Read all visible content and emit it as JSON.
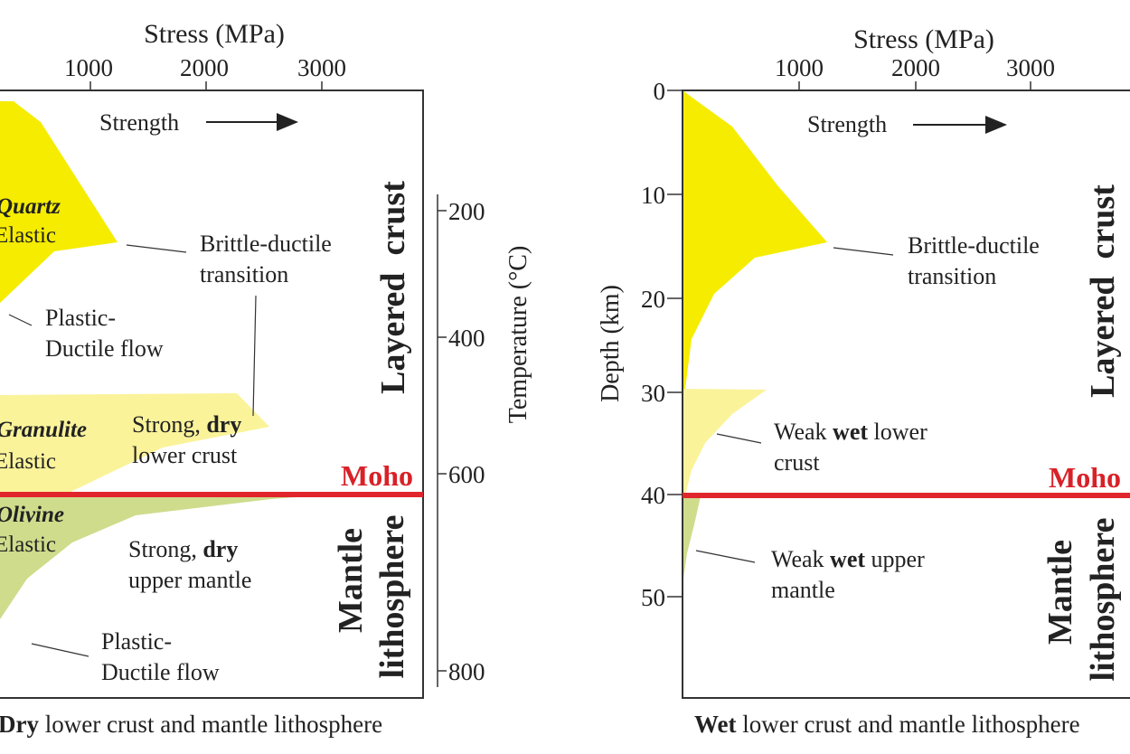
{
  "left_panel": {
    "top_axis_title": "Stress (MPa)",
    "top_ticks": [
      "1000",
      "2000",
      "3000"
    ],
    "strength_label": "Strength",
    "temp_axis_title": "Temperature (°C)",
    "temp_ticks": [
      "200",
      "400",
      "600",
      "800"
    ],
    "zone_layered": "Layered  crust",
    "zone_mantle_1": "Mantle",
    "zone_mantle_2": "lithosphere",
    "moho": "Moho",
    "quartz_1": "Quartz",
    "quartz_2": "Elastic",
    "bd_1": "Brittle-ductile",
    "bd_2": "transition",
    "pd1_1": "Plastic-",
    "pd1_2": "Ductile flow",
    "granulite_1": "Granulite",
    "granulite_2": "Elastic",
    "slc_a": "Strong, ",
    "slc_b": "dry",
    "slc_c": "lower crust",
    "olivine_1": "Olivine",
    "olivine_2": "Elastic",
    "sum_a": "Strong, ",
    "sum_b": "dry",
    "sum_c": "upper mantle",
    "pd2_1": "Plastic-",
    "pd2_2": "Ductile flow",
    "caption_a": "Dry",
    "caption_b": " lower crust and mantle lithosphere"
  },
  "right_panel": {
    "top_axis_title": "Stress (MPa)",
    "top_ticks": [
      "1000",
      "2000",
      "3000"
    ],
    "strength_label": "Strength",
    "depth_axis_title": "Depth (km)",
    "depth_ticks": [
      "0",
      "10",
      "20",
      "30",
      "40",
      "50"
    ],
    "zone_layered": "Layered  crust",
    "zone_mantle_1": "Mantle",
    "zone_mantle_2": "lithosphere",
    "moho": "Moho",
    "bd_1": "Brittle-ductile",
    "bd_2": "transition",
    "wlc_a": "Weak ",
    "wlc_b": "wet",
    "wlc_c": " lower",
    "wlc_d": "crust",
    "wum_a": "Weak ",
    "wum_b": "wet",
    "wum_c": " upper",
    "wum_d": "mantle",
    "caption_a": "Wet",
    "caption_b": " lower crust and mantle lithosphere"
  },
  "colors": {
    "quartz_yellow": "#f5ec00",
    "crust_light_yellow": "#faf39a",
    "mantle_green": "#cfdc8c",
    "moho_red": "#e0262c",
    "moho_label": "#d92128"
  }
}
